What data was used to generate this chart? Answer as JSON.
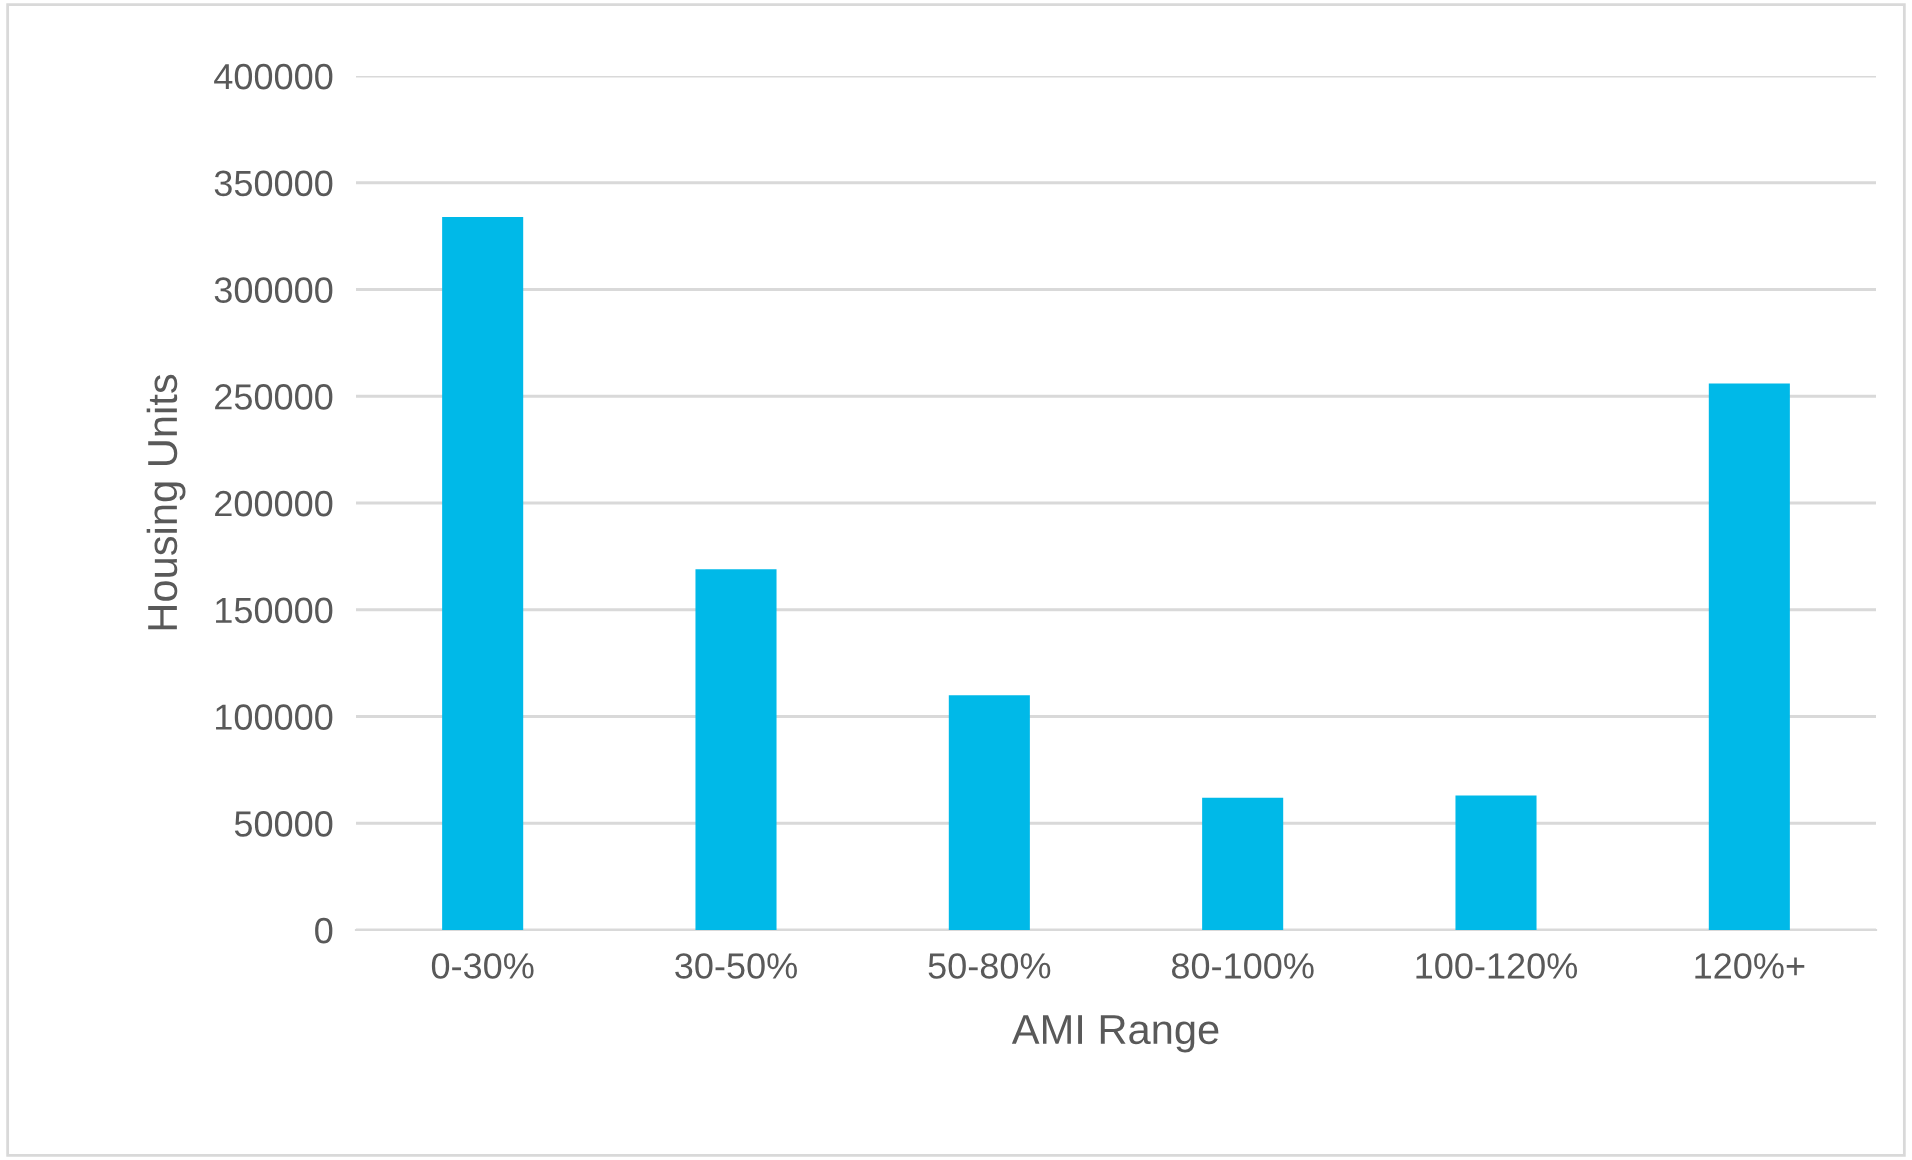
{
  "chart_data": {
    "type": "bar",
    "xlabel": "AMI Range",
    "ylabel": "Housing Units",
    "categories": [
      "0-30%",
      "30-50%",
      "50-80%",
      "80-100%",
      "100-120%",
      "120%+"
    ],
    "values": [
      334000,
      169000,
      110000,
      62000,
      63000,
      256000
    ],
    "color": "#00b9e8",
    "ylim": [
      0,
      400000
    ],
    "yticks": [
      0,
      50000,
      100000,
      150000,
      200000,
      250000,
      300000,
      350000,
      400000
    ],
    "grid": "y"
  }
}
